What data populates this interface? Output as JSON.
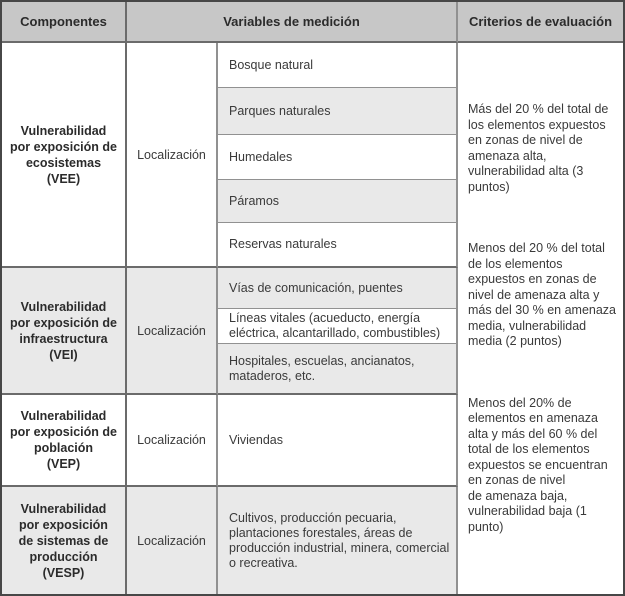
{
  "header": {
    "componentes": "Componentes",
    "variables": "Variables de medición",
    "criterios": "Criterios de evaluación"
  },
  "components": [
    {
      "code": "VEE",
      "name": "Vulnerabilidad\npor exposición de\necosistemas\n(VEE)",
      "variable": "Localización"
    },
    {
      "code": "VEI",
      "name": "Vulnerabilidad\npor exposición de\ninfraestructura\n(VEI)",
      "variable": "Localización"
    },
    {
      "code": "VEP",
      "name": "Vulnerabilidad\npor exposición de\npoblación\n(VEP)",
      "variable": "Localización"
    },
    {
      "code": "VESP",
      "name": "Vulnerabilidad\npor exposición\nde sistemas de\nproducción\n(VESP)",
      "variable": "Localización"
    }
  ],
  "items": [
    "Bosque natural",
    "Parques naturales",
    "Humedales",
    "Páramos",
    "Reservas naturales",
    "Vías de comunicación, puentes",
    "Líneas vitales (acueducto, energía eléctrica, alcantarillado, combustibles)",
    "Hospitales, escuelas, ancianatos, mataderos, etc.",
    "Viviendas",
    "Cultivos, producción pecuaria, plantaciones forestales, áreas de producción industrial, minera, comercial o recreativa."
  ],
  "criteria": [
    "Más del 20 % del total de los elementos expuestos en zonas de nivel de amenaza alta, vulnerabilidad alta (3 puntos)",
    "Menos del 20 % del total de los elementos expuestos en zonas de nivel de amenaza alta y más del 30 % en amenaza media, vulnerabilidad media (2 puntos)",
    "Menos del 20% de elementos en amenaza alta y más del 60 % del total de los elementos expuestos se encuentran en zonas de nivel\nde amenaza baja, vulnerabilidad baja (1 punto)"
  ],
  "colors": {
    "header-bg": "#c7c7c7",
    "shade-bg": "#e9e9e9",
    "border-dark": "#474747",
    "border-mid": "#6b6b6b",
    "border-light": "#919191",
    "text-main": "#3a3a3a",
    "text-bold": "#2b2b2b"
  }
}
